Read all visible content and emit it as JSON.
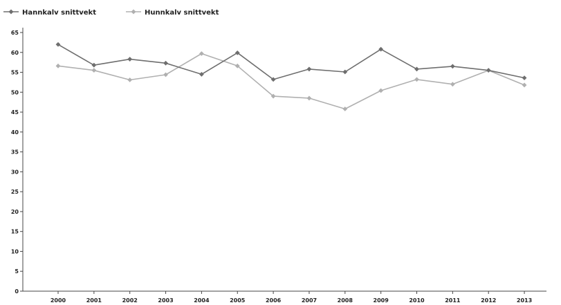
{
  "chart_data": {
    "type": "line",
    "title": "",
    "xlabel": "",
    "ylabel": "",
    "categories": [
      "2000",
      "2001",
      "2002",
      "2003",
      "2004",
      "2005",
      "2006",
      "2007",
      "2008",
      "2009",
      "2010",
      "2011",
      "2012",
      "2013"
    ],
    "ylim": [
      0,
      65
    ],
    "yticks": [
      "0",
      "5",
      "10",
      "15",
      "20",
      "25",
      "30",
      "35",
      "40",
      "45",
      "50",
      "55",
      "60",
      "65"
    ],
    "grid": false,
    "legend_position": "top-left",
    "series": [
      {
        "name": "Hannkalv snittvekt",
        "color": "#6e6e6e",
        "values": [
          62.0,
          56.8,
          58.3,
          57.3,
          54.5,
          59.9,
          53.2,
          55.8,
          55.1,
          60.8,
          55.8,
          56.5,
          55.5,
          53.6
        ]
      },
      {
        "name": "Hunnkalv snittvekt",
        "color": "#b0b0b0",
        "values": [
          56.6,
          55.5,
          53.1,
          54.4,
          59.7,
          56.6,
          49.0,
          48.5,
          45.8,
          50.4,
          53.2,
          52.0,
          55.5,
          51.8
        ]
      }
    ]
  }
}
